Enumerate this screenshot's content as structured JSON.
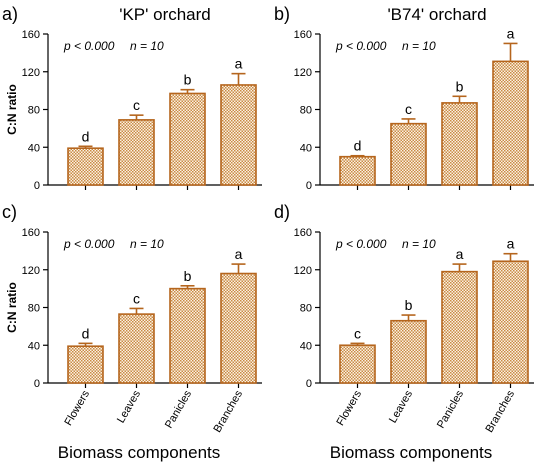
{
  "figure": {
    "colors": {
      "bar_stroke": "#b5651d",
      "bar_fill": "#e9c9a0",
      "axis": "#000000"
    },
    "xlabel": "Biomass components"
  },
  "chart_data": [
    {
      "type": "bar",
      "panel_label": "a)",
      "title": "'KP' orchard",
      "stats": {
        "p": "p < 0.000",
        "n": "n = 10"
      },
      "ylabel": "C:N ratio",
      "ylim": [
        0,
        160
      ],
      "yticks": [
        0,
        40,
        80,
        120,
        160
      ],
      "xlabel": "",
      "categories": [
        "Flowers",
        "Leaves",
        "Panicles",
        "Branches"
      ],
      "values": [
        39,
        69,
        97,
        106
      ],
      "errors": [
        2,
        5,
        4,
        12
      ],
      "letters": [
        "d",
        "c",
        "b",
        "a"
      ]
    },
    {
      "type": "bar",
      "panel_label": "b)",
      "title": "'B74' orchard",
      "stats": {
        "p": "p < 0.000",
        "n": "n = 10"
      },
      "ylabel": "",
      "ylim": [
        0,
        160
      ],
      "yticks": [
        0,
        40,
        80,
        120,
        160
      ],
      "xlabel": "",
      "categories": [
        "Flowers",
        "Leaves",
        "Panicles",
        "Branches"
      ],
      "values": [
        30,
        65,
        87,
        131
      ],
      "errors": [
        1,
        5,
        7,
        19
      ],
      "letters": [
        "d",
        "c",
        "b",
        "a"
      ]
    },
    {
      "type": "bar",
      "panel_label": "c)",
      "title": "",
      "stats": {
        "p": "p < 0.000",
        "n": "n = 10"
      },
      "ylabel": "C:N ratio",
      "ylim": [
        0,
        160
      ],
      "yticks": [
        0,
        40,
        80,
        120,
        160
      ],
      "xlabel": "Biomass components",
      "categories": [
        "Flowers",
        "Leaves",
        "Panicles",
        "Branches"
      ],
      "values": [
        39,
        73,
        100,
        116
      ],
      "errors": [
        3,
        6,
        3,
        10
      ],
      "letters": [
        "d",
        "c",
        "b",
        "a"
      ]
    },
    {
      "type": "bar",
      "panel_label": "d)",
      "title": "",
      "stats": {
        "p": "p < 0.000",
        "n": "n = 10"
      },
      "ylabel": "",
      "ylim": [
        0,
        160
      ],
      "yticks": [
        0,
        40,
        80,
        120,
        160
      ],
      "xlabel": "Biomass components",
      "categories": [
        "Flowers",
        "Leaves",
        "Panicles",
        "Branches"
      ],
      "values": [
        40,
        66,
        118,
        129
      ],
      "errors": [
        2,
        6,
        8,
        8
      ],
      "letters": [
        "c",
        "b",
        "a",
        "a"
      ]
    }
  ]
}
